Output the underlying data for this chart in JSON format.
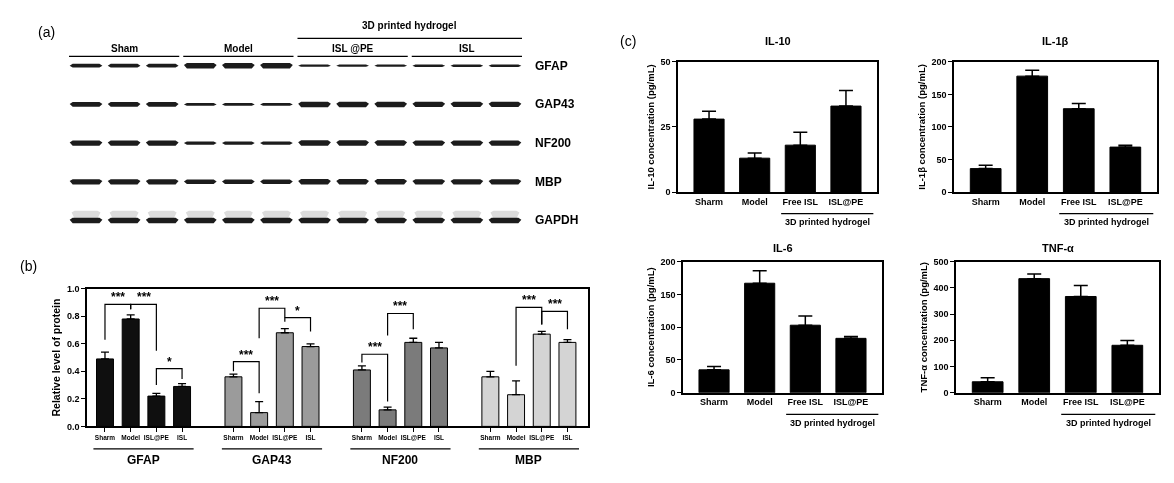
{
  "chart_data": [
    {
      "type": "other",
      "categories": [
        "Sham",
        "Model",
        "ISL @PE",
        "ISL"
      ],
      "y_categories": [
        "GFAP",
        "GAP43",
        "NF200",
        "MBP",
        "GAPDH"
      ],
      "annotations": [
        "(a)",
        "3D printed hydrogel"
      ]
    },
    {
      "type": "bar",
      "ylabel": "Relative level of protein",
      "categories": [
        "Sharm",
        "Model",
        "ISL@PE",
        "ISL",
        null,
        "Sharm",
        "Model",
        "ISL@PE",
        "ISL",
        null,
        "Sharm",
        "Model",
        "ISL@PE",
        "ISL",
        null,
        "Sharm",
        "Model",
        "ISL@PE",
        "ISL"
      ],
      "series": [
        {
          "name": "GFAP",
          "color": "#0f0f0f",
          "values": [
            0.49,
            0.78,
            0.22,
            0.29,
            null,
            null,
            null,
            null,
            null,
            null,
            null,
            null,
            null,
            null,
            null,
            null,
            null,
            null,
            null
          ],
          "errors": [
            [
              0.49,
              0.54
            ],
            [
              0.78,
              0.81
            ],
            [
              0.22,
              0.24
            ],
            [
              0.29,
              0.31
            ],
            null,
            null,
            null,
            null,
            null,
            null,
            null,
            null,
            null,
            null,
            null,
            null,
            null,
            null,
            null
          ]
        },
        {
          "name": "GAP43",
          "color": "#9b9b9b",
          "values": [
            null,
            null,
            null,
            null,
            null,
            0.36,
            0.1,
            0.68,
            0.58,
            null,
            null,
            null,
            null,
            null,
            null,
            null,
            null,
            null,
            null
          ],
          "errors": [
            null,
            null,
            null,
            null,
            null,
            [
              0.36,
              0.38
            ],
            [
              0.1,
              0.18
            ],
            [
              0.68,
              0.71
            ],
            [
              0.58,
              0.6
            ],
            null,
            null,
            null,
            null,
            null,
            null,
            null,
            null,
            null,
            null
          ]
        },
        {
          "name": "NF200",
          "color": "#7b7b7b",
          "values": [
            null,
            null,
            null,
            null,
            null,
            null,
            null,
            null,
            null,
            null,
            0.41,
            0.12,
            0.61,
            0.57,
            null,
            null,
            null,
            null,
            null
          ],
          "errors": [
            null,
            null,
            null,
            null,
            null,
            null,
            null,
            null,
            null,
            null,
            [
              0.41,
              0.44
            ],
            [
              0.12,
              0.14
            ],
            [
              0.61,
              0.64
            ],
            [
              0.57,
              0.61
            ],
            null,
            null,
            null,
            null,
            null
          ]
        },
        {
          "name": "MBP",
          "color": "#d4d4d4",
          "values": [
            null,
            null,
            null,
            null,
            null,
            null,
            null,
            null,
            null,
            null,
            null,
            null,
            null,
            null,
            null,
            0.36,
            0.23,
            0.67,
            0.61
          ],
          "errors": [
            null,
            null,
            null,
            null,
            null,
            null,
            null,
            null,
            null,
            null,
            null,
            null,
            null,
            null,
            null,
            [
              0.36,
              0.4
            ],
            [
              0.23,
              0.33
            ],
            [
              0.67,
              0.69
            ],
            [
              0.61,
              0.63
            ]
          ]
        }
      ],
      "ylim": [
        0,
        1.0
      ],
      "yticks": [
        {
          "value": 0,
          "label": "0.0"
        },
        0.2,
        0.4,
        0.6,
        0.8,
        {
          "value": 1.0,
          "label": "1.0"
        }
      ],
      "annotations": [
        "(b)",
        "***",
        "***",
        "*",
        "***",
        "***",
        "*",
        "***",
        "***",
        "***",
        "***"
      ]
    },
    {
      "type": "bar",
      "title": "IL-10",
      "ylabel": "IL-10 concentration (pg/mL)",
      "categories": [
        "Sharm",
        "Model",
        "Free ISL",
        "ISL@PE"
      ],
      "values": [
        28,
        13,
        18,
        33
      ],
      "errors": [
        [
          28,
          31
        ],
        [
          13,
          15
        ],
        [
          18,
          23
        ],
        [
          33,
          39
        ]
      ],
      "color": "#000000",
      "ylim": [
        0,
        50
      ],
      "yticks": [
        0,
        25,
        50
      ],
      "annotations": [
        "(c)",
        "3D printed hydrogel"
      ]
    },
    {
      "type": "bar",
      "title": "IL-1β",
      "ylabel": "IL-1β concentration (pg/mL)",
      "categories": [
        "Sharm",
        "Model",
        "Free ISL",
        "ISL@PE"
      ],
      "values": [
        36,
        178,
        128,
        69
      ],
      "errors": [
        [
          36,
          41
        ],
        [
          178,
          187
        ],
        [
          128,
          136
        ],
        [
          69,
          72
        ]
      ],
      "color": "#000000",
      "ylim": [
        0,
        200
      ],
      "yticks": [
        0,
        50,
        100,
        150,
        200
      ],
      "annotations": [
        "3D printed hydrogel"
      ]
    },
    {
      "type": "bar",
      "title": "IL-6",
      "ylabel": "IL-6 concentration (pg/mL)",
      "categories": [
        "Sharm",
        "Model",
        "Free ISL",
        "ISL@PE"
      ],
      "values": [
        35,
        167,
        103,
        83
      ],
      "errors": [
        [
          35,
          40
        ],
        [
          167,
          186
        ],
        [
          103,
          117
        ],
        [
          83,
          86
        ]
      ],
      "color": "#000000",
      "ylim": [
        0,
        200
      ],
      "yticks": [
        0,
        50,
        100,
        150,
        200
      ],
      "annotations": [
        "3D printed hydrogel"
      ]
    },
    {
      "type": "bar",
      "title": "TNF-α",
      "ylabel": "TNF-α concentration (pg/mL)",
      "categories": [
        "Sharm",
        "Model",
        "Free ISL",
        "ISL@PE"
      ],
      "values": [
        42,
        435,
        367,
        181
      ],
      "errors": [
        [
          42,
          57
        ],
        [
          435,
          453
        ],
        [
          367,
          409
        ],
        [
          181,
          199
        ]
      ],
      "color": "#000000",
      "ylim": [
        0,
        500
      ],
      "yticks": [
        0,
        100,
        200,
        300,
        400,
        500
      ],
      "annotations": [
        "3D printed hydrogel"
      ]
    }
  ]
}
